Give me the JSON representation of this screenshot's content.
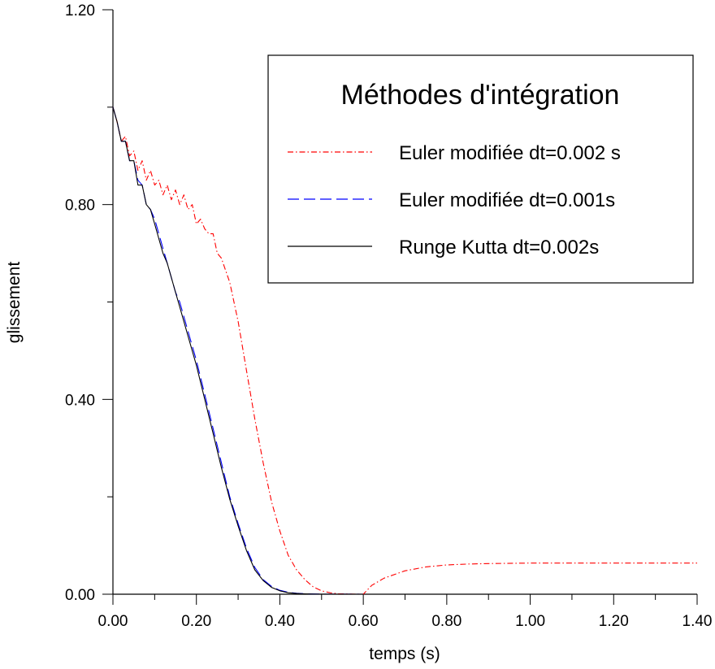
{
  "chart_data": {
    "type": "line",
    "xlabel": "temps (s)",
    "ylabel": "glissement",
    "xlim": [
      0,
      1.4
    ],
    "ylim": [
      0,
      1.2
    ],
    "x_ticks": [
      0,
      0.2,
      0.4,
      0.6,
      0.8,
      1.0,
      1.2,
      1.4
    ],
    "x_tick_labels": [
      "0.00",
      "0.20",
      "0.40",
      "0.60",
      "0.80",
      "1.00",
      "1.20",
      "1.40"
    ],
    "y_ticks": [
      0,
      0.4,
      0.8,
      1.2
    ],
    "y_tick_labels": [
      "0.00",
      "0.40",
      "0.80",
      "1.20"
    ],
    "grid": false,
    "legend": {
      "title": "Méthodes d'intégration",
      "position": "top-right"
    },
    "series": [
      {
        "name": "Euler modifiée dt=0.002 s",
        "color": "#ff0000",
        "dash": "dash-dot",
        "x": [
          0,
          0.01,
          0.02,
          0.03,
          0.04,
          0.05,
          0.06,
          0.07,
          0.08,
          0.09,
          0.1,
          0.11,
          0.12,
          0.13,
          0.14,
          0.15,
          0.16,
          0.17,
          0.18,
          0.19,
          0.2,
          0.21,
          0.22,
          0.23,
          0.24,
          0.25,
          0.26,
          0.28,
          0.3,
          0.32,
          0.34,
          0.36,
          0.38,
          0.4,
          0.42,
          0.44,
          0.46,
          0.48,
          0.5,
          0.52,
          0.54,
          0.56,
          0.58,
          0.6,
          0.62,
          0.65,
          0.7,
          0.75,
          0.8,
          0.85,
          0.9,
          1.0,
          1.1,
          1.2,
          1.3,
          1.4
        ],
        "y": [
          1.0,
          0.97,
          0.93,
          0.94,
          0.9,
          0.91,
          0.87,
          0.89,
          0.85,
          0.87,
          0.84,
          0.85,
          0.82,
          0.84,
          0.81,
          0.83,
          0.8,
          0.82,
          0.79,
          0.8,
          0.76,
          0.77,
          0.75,
          0.74,
          0.74,
          0.7,
          0.69,
          0.64,
          0.56,
          0.46,
          0.36,
          0.27,
          0.19,
          0.13,
          0.08,
          0.05,
          0.03,
          0.015,
          0.007,
          0.003,
          0.001,
          0.0005,
          0.0002,
          0.0,
          0.018,
          0.033,
          0.048,
          0.056,
          0.06,
          0.062,
          0.063,
          0.064,
          0.064,
          0.064,
          0.064,
          0.064
        ]
      },
      {
        "name": "Euler modifiée dt=0.001s",
        "color": "#0000ff",
        "dash": "long-dash",
        "x": [
          0,
          0.01,
          0.02,
          0.03,
          0.04,
          0.05,
          0.06,
          0.07,
          0.08,
          0.09,
          0.1,
          0.11,
          0.12,
          0.13,
          0.14,
          0.15,
          0.16,
          0.18,
          0.2,
          0.22,
          0.24,
          0.26,
          0.28,
          0.3,
          0.32,
          0.34,
          0.36,
          0.38,
          0.4,
          0.42,
          0.44,
          0.46,
          0.48,
          0.5,
          0.55,
          0.6
        ],
        "y": [
          1.0,
          0.97,
          0.93,
          0.93,
          0.89,
          0.89,
          0.85,
          0.84,
          0.8,
          0.79,
          0.77,
          0.74,
          0.71,
          0.68,
          0.65,
          0.62,
          0.6,
          0.54,
          0.48,
          0.41,
          0.34,
          0.27,
          0.2,
          0.145,
          0.095,
          0.055,
          0.03,
          0.016,
          0.008,
          0.004,
          0.002,
          0.001,
          0.0005,
          0.0002,
          0.0001,
          0.0
        ]
      },
      {
        "name": "Runge Kutta dt=0.002s",
        "color": "#000000",
        "dash": "solid",
        "x": [
          0,
          0.01,
          0.02,
          0.03,
          0.04,
          0.05,
          0.06,
          0.07,
          0.08,
          0.09,
          0.1,
          0.11,
          0.12,
          0.13,
          0.14,
          0.15,
          0.16,
          0.18,
          0.2,
          0.22,
          0.24,
          0.26,
          0.28,
          0.3,
          0.32,
          0.34,
          0.36,
          0.38,
          0.4,
          0.42,
          0.44,
          0.46,
          0.48,
          0.5,
          0.55,
          0.6
        ],
        "y": [
          1.0,
          0.97,
          0.93,
          0.93,
          0.89,
          0.89,
          0.84,
          0.84,
          0.8,
          0.79,
          0.76,
          0.73,
          0.7,
          0.68,
          0.65,
          0.62,
          0.59,
          0.53,
          0.47,
          0.4,
          0.33,
          0.26,
          0.195,
          0.14,
          0.09,
          0.05,
          0.028,
          0.014,
          0.007,
          0.003,
          0.0015,
          0.0008,
          0.0004,
          0.0002,
          0.0001,
          0.0
        ]
      }
    ]
  }
}
